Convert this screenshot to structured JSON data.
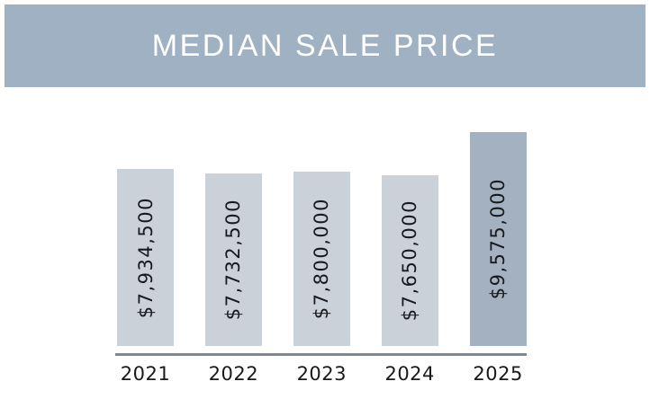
{
  "header": {
    "title": "MEDIAN SALE PRICE"
  },
  "chart_data": {
    "type": "bar",
    "title": "MEDIAN SALE PRICE",
    "categories": [
      "2021",
      "2022",
      "2023",
      "2024",
      "2025"
    ],
    "values": [
      7934500,
      7732500,
      7800000,
      7650000,
      9575000
    ],
    "bar_labels": [
      "$7,934,500",
      "$7,732,500",
      "$7,800,000",
      "$7,650,000",
      "$9,575,000"
    ],
    "xlabel": "",
    "ylabel": "",
    "ylim": [
      0,
      9575000
    ],
    "grid": false,
    "legend": "none",
    "highlight_index": 4,
    "colors": {
      "banner_bg": "#9fb1c3",
      "banner_text": "#ffffff",
      "bar_fill": "#cbd1d9",
      "bar_fill_highlight": "#a3b1c1",
      "value_text": "#17191d",
      "tick_text": "#17191d",
      "axis_line": "#7e8894"
    }
  }
}
